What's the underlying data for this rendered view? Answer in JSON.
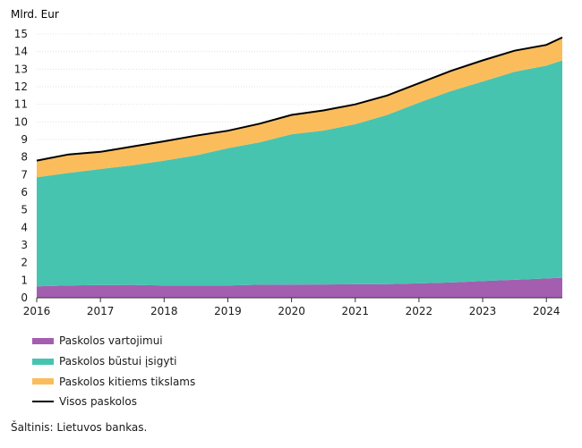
{
  "chart_data": {
    "type": "area",
    "stacked": true,
    "title": "",
    "ylabel": "Mlrd. Eur",
    "xlabel": "",
    "ylim": [
      0,
      15
    ],
    "yticks": [
      "0",
      "1",
      "2",
      "3",
      "4",
      "5",
      "6",
      "7",
      "8",
      "9",
      "10",
      "11",
      "12",
      "13",
      "14",
      "15"
    ],
    "xticks": [
      "2016",
      "2017",
      "2018",
      "2019",
      "2020",
      "2021",
      "2022",
      "2023",
      "2024"
    ],
    "x": [
      "2016-01",
      "2016-07",
      "2017-01",
      "2017-07",
      "2018-01",
      "2018-07",
      "2019-01",
      "2019-07",
      "2020-01",
      "2020-07",
      "2021-01",
      "2021-07",
      "2022-01",
      "2022-07",
      "2023-01",
      "2023-07",
      "2024-01",
      "2024-04"
    ],
    "series": [
      {
        "name": "Paskolos vartojimui",
        "color": "#a35eb0",
        "values": [
          0.65,
          0.7,
          0.72,
          0.73,
          0.7,
          0.7,
          0.7,
          0.74,
          0.75,
          0.76,
          0.77,
          0.78,
          0.82,
          0.87,
          0.95,
          1.02,
          1.1,
          1.14
        ]
      },
      {
        "name": "Paskolos būstui įsigyti",
        "color": "#47c4b0",
        "values": [
          6.2,
          6.4,
          6.6,
          6.8,
          7.1,
          7.4,
          7.8,
          8.1,
          8.55,
          8.75,
          9.1,
          9.62,
          10.28,
          10.88,
          11.35,
          11.83,
          12.1,
          12.36
        ]
      },
      {
        "name": "Paskolos kitiems tikslams",
        "color": "#fbbd5c",
        "values": [
          0.95,
          1.05,
          0.98,
          1.07,
          1.1,
          1.12,
          1.0,
          1.06,
          1.1,
          1.14,
          1.13,
          1.1,
          1.1,
          1.15,
          1.2,
          1.2,
          1.18,
          1.3
        ]
      }
    ],
    "total": {
      "name": "Visos paskolos",
      "color": "#000000",
      "values": [
        7.8,
        8.15,
        8.3,
        8.6,
        8.9,
        9.22,
        9.5,
        9.9,
        10.4,
        10.65,
        11.0,
        11.5,
        12.2,
        12.9,
        13.5,
        14.05,
        14.38,
        14.8
      ]
    },
    "legend_position": "bottom-left",
    "grid": true
  },
  "source": "Šaltinis: Lietuvos bankas."
}
